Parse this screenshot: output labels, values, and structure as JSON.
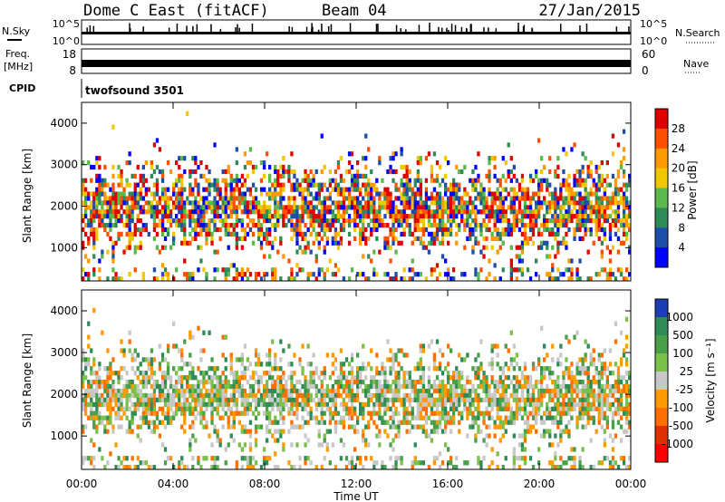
{
  "header": {
    "station": "Dome C East (fitACF)",
    "beam": "Beam 04",
    "date": "27/Jan/2015"
  },
  "nsky_panel": {
    "left_label": "N.Sky",
    "left_ticks": [
      "10^5",
      "10^0"
    ],
    "right_ticks": [
      "10^5",
      "10^0"
    ],
    "right_label": "N.Search"
  },
  "freq_panel": {
    "left_label_line1": "Freq.",
    "left_label_line2": "[MHz]",
    "left_ticks": [
      "18",
      "8"
    ],
    "right_ticks": [
      "60",
      "0"
    ],
    "right_label": "Nave"
  },
  "cpid": {
    "label": "CPID",
    "value": "twofsound 3501"
  },
  "chart_data": [
    {
      "type": "heatmap",
      "name": "power",
      "ylabel": "Slant Range [km]",
      "yticks": [
        1000,
        2000,
        3000,
        4000
      ],
      "ylim": [
        200,
        4500
      ],
      "xlim": [
        "00:00",
        "24:00"
      ],
      "colorbar": {
        "label": "Power [dB]",
        "ticks": [
          "28",
          "24",
          "20",
          "16",
          "12",
          "8",
          "4"
        ],
        "colors": [
          "#e00000",
          "#ff5000",
          "#ff9a00",
          "#f0c800",
          "#5cb84c",
          "#2e8b57",
          "#1f4ea8",
          "#0000ff"
        ]
      }
    },
    {
      "type": "heatmap",
      "name": "velocity",
      "ylabel": "Slant Range [km]",
      "yticks": [
        1000,
        2000,
        3000,
        4000
      ],
      "ylim": [
        200,
        4500
      ],
      "xlim": [
        "00:00",
        "24:00"
      ],
      "xlabel": "Time UT",
      "xticks": [
        "00:00",
        "04:00",
        "08:00",
        "12:00",
        "16:00",
        "20:00",
        "00:00"
      ],
      "colorbar": {
        "label": "Velocity [m s⁻¹]",
        "ticks": [
          "1000",
          "500",
          "100",
          "25",
          "-25",
          "-100",
          "-500",
          "-1000"
        ],
        "colors": [
          "#1e3cb4",
          "#2e8b57",
          "#4aa04a",
          "#7cc04c",
          "#c8c8c8",
          "#ff9a00",
          "#ff7000",
          "#e03000",
          "#ff0000"
        ]
      }
    }
  ]
}
